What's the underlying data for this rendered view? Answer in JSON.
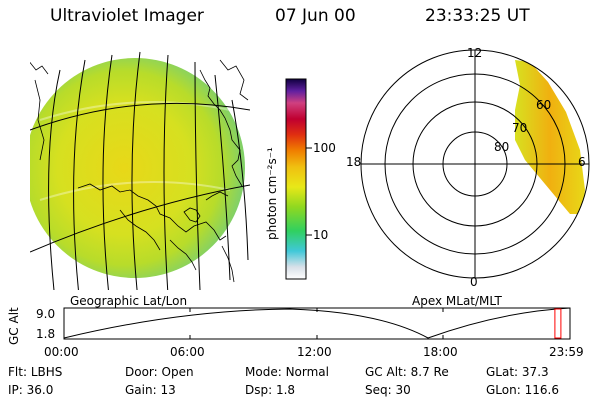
{
  "header": {
    "instrument": "Ultraviolet Imager",
    "date": "07 Jun 00",
    "time": "23:33:25 UT"
  },
  "colorbar": {
    "unit_label": "photon cm⁻²s⁻¹",
    "ticks": [
      "100",
      "10"
    ]
  },
  "left_panel": {
    "caption": "Geographic Lat/Lon"
  },
  "right_panel": {
    "caption": "Apex MLat/MLT",
    "mlt_labels": {
      "top": "12",
      "left": "18",
      "right": "6",
      "bottom": "0"
    },
    "lat_labels": [
      "60",
      "70",
      "80"
    ]
  },
  "timeline": {
    "ylabel": "GC Alt",
    "y_ticks": [
      "9.0",
      "1.8"
    ],
    "x_ticks": [
      "00:00",
      "06:00",
      "12:00",
      "18:00",
      "23:59"
    ],
    "current_fraction": 0.982
  },
  "status": {
    "row1": [
      {
        "label": "Flt:",
        "value": "LBHS"
      },
      {
        "label": "Door:",
        "value": "Open"
      },
      {
        "label": "Mode:",
        "value": "Normal"
      },
      {
        "label": "GC Alt:",
        "value": "8.7 Re"
      },
      {
        "label": "GLat:",
        "value": "37.3"
      }
    ],
    "row2": [
      {
        "label": "IP:",
        "value": "36.0"
      },
      {
        "label": "Gain:",
        "value": "13"
      },
      {
        "label": "Dsp:",
        "value": "1.8"
      },
      {
        "label": "Seq:",
        "value": "30"
      },
      {
        "label": "GLon:",
        "value": "116.6"
      }
    ]
  },
  "colors": {
    "accent_marker": "#ff0000"
  }
}
